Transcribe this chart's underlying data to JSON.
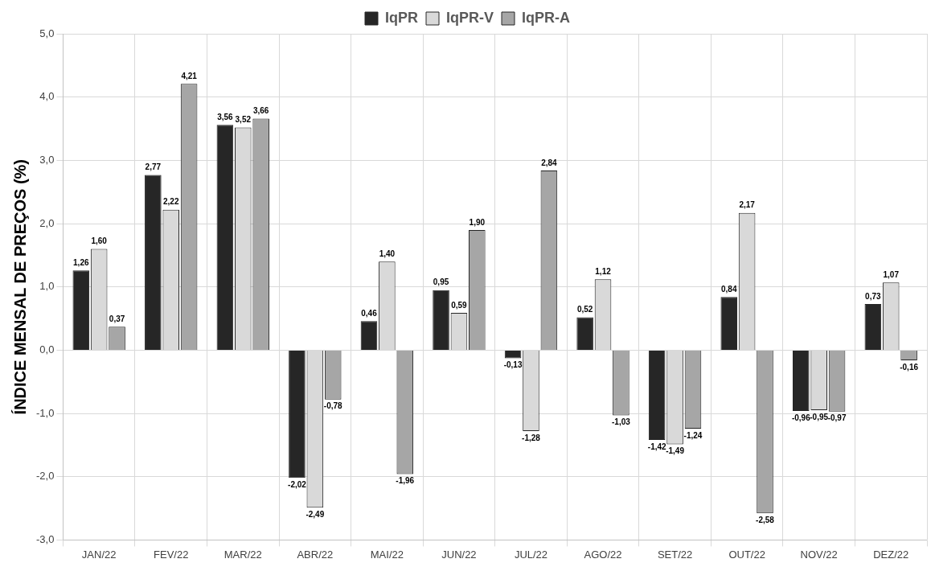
{
  "chart_data": {
    "type": "bar",
    "ylabel": "ÍNDICE MENSAL DE PREÇOS (%)",
    "categories": [
      "JAN/22",
      "FEV/22",
      "MAR/22",
      "ABR/22",
      "MAI/22",
      "JUN/22",
      "JUL/22",
      "AGO/22",
      "SET/22",
      "OUT/22",
      "NOV/22",
      "DEZ/22"
    ],
    "series": [
      {
        "name": "IqPR",
        "color": "#262626",
        "values": [
          1.26,
          2.77,
          3.56,
          -2.02,
          0.46,
          0.95,
          -0.13,
          0.52,
          -1.42,
          0.84,
          -0.96,
          0.73
        ],
        "value_labels": [
          "1,26",
          "2,77",
          "3,56",
          "-2,02",
          "0,46",
          "0,95",
          "-0,13",
          "0,52",
          "-1,42",
          "0,84",
          "-0,96",
          "0,73"
        ]
      },
      {
        "name": "IqPR-V",
        "color": "#d9d9d9",
        "values": [
          1.6,
          2.22,
          3.52,
          -2.49,
          1.4,
          0.59,
          -1.28,
          1.12,
          -1.49,
          2.17,
          -0.95,
          1.07
        ],
        "value_labels": [
          "1,60",
          "2,22",
          "3,52",
          "-2,49",
          "1,40",
          "0,59",
          "-1,28",
          "1,12",
          "-1,49",
          "2,17",
          "-0,95",
          "1,07"
        ]
      },
      {
        "name": "IqPR-A",
        "color": "#a6a6a6",
        "values": [
          0.37,
          4.21,
          3.66,
          -0.78,
          -1.96,
          1.9,
          2.84,
          -1.03,
          -1.24,
          -2.58,
          -0.97,
          -0.16
        ],
        "value_labels": [
          "0,37",
          "4,21",
          "3,66",
          "-0,78",
          "-1,96",
          "1,90",
          "2,84",
          "-1,03",
          "-1,24",
          "-2,58",
          "-0,97",
          "-0,16"
        ]
      }
    ],
    "ylim": [
      -3,
      5
    ],
    "yticks": [
      {
        "value": -3,
        "label": "-3,0"
      },
      {
        "value": -2,
        "label": "-2,0"
      },
      {
        "value": -1,
        "label": "-1,0"
      },
      {
        "value": 0,
        "label": "0,0"
      },
      {
        "value": 1,
        "label": "1,0"
      },
      {
        "value": 2,
        "label": "2,0"
      },
      {
        "value": 3,
        "label": "3,0"
      },
      {
        "value": 4,
        "label": "4,0"
      },
      {
        "value": 5,
        "label": "5,0"
      }
    ],
    "grid": true,
    "legend": "top"
  }
}
